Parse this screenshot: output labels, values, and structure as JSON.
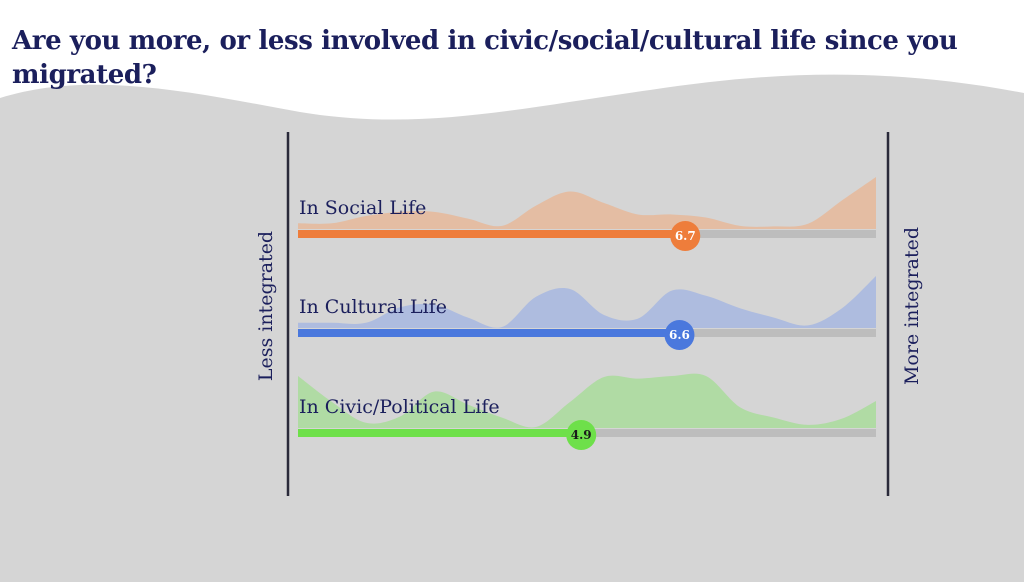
{
  "title": "Are you more, or less involved in civic/social/cultural life since you migrated?",
  "colors": {
    "background": "#d5d5d5",
    "text": "#1b1f5c",
    "track": "#bdbdbd",
    "axis_line": "#2a2a3a"
  },
  "chart_data": {
    "type": "bar",
    "title": "Are you more, or less involved in civic/social/cultural life since you migrated?",
    "scale_min_label": "Less integrated",
    "scale_max_label": "More integrated",
    "xlim": [
      0,
      10
    ],
    "categories": [
      "In Social Life",
      "In Cultural Life",
      "In Civic/Political Life"
    ],
    "values": [
      6.7,
      6.6,
      4.9
    ],
    "value_labels": [
      "6.7",
      "6.6",
      "4.9"
    ],
    "bar_colors": [
      "#ee7d3b",
      "#4a78dd",
      "#6ee04a"
    ],
    "distribution_colors": [
      "#e6b89a",
      "#a7b7e0",
      "#a9dc9b"
    ],
    "distributions": [
      [
        0.11,
        0.11,
        0.25,
        0.33,
        0.33,
        0.2,
        0.06,
        0.45,
        0.72,
        0.5,
        0.28,
        0.28,
        0.22,
        0.06,
        0.05,
        0.1,
        0.55,
        1.0
      ],
      [
        0.1,
        0.1,
        0.1,
        0.4,
        0.45,
        0.2,
        0.02,
        0.6,
        0.75,
        0.25,
        0.18,
        0.72,
        0.62,
        0.38,
        0.2,
        0.05,
        0.38,
        1.0
      ],
      [
        1.0,
        0.5,
        0.1,
        0.22,
        0.7,
        0.45,
        0.2,
        0.02,
        0.5,
        0.98,
        0.95,
        1.0,
        1.0,
        0.4,
        0.2,
        0.06,
        0.18,
        0.52
      ]
    ]
  }
}
